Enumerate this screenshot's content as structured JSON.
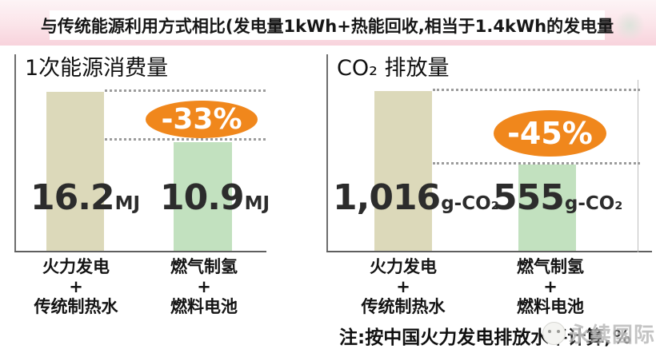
{
  "header": {
    "title": "与传统能源利用方式相比(发电量1kWh+热能回收,相当于1.4kWh的发电量"
  },
  "panels": [
    {
      "title": "1次能源消费量",
      "reduction_badge": "-33%",
      "bars": [
        {
          "value": "16.2",
          "unit": "MJ",
          "lines": [
            "火力发电",
            "+",
            "传统制热水"
          ],
          "color": "#dcd9ba"
        },
        {
          "value": "10.9",
          "unit": "MJ",
          "lines": [
            "燃气制氢",
            "+",
            "燃料电池"
          ],
          "color": "#c2e1bf"
        }
      ]
    },
    {
      "title": "CO₂ 排放量",
      "reduction_badge": "-45%",
      "bars": [
        {
          "value": "1,016",
          "unit": "g-CO₂",
          "lines": [
            "火力发电",
            "+",
            "传统制热水"
          ],
          "color": "#dcd9ba"
        },
        {
          "value": "555",
          "unit": "g-CO₂",
          "lines": [
            "燃气制氢",
            "+",
            "燃料电池"
          ],
          "color": "#c2e1bf"
        }
      ]
    }
  ],
  "note": {
    "text": "注:按中国火力发电排放水平计算,",
    "percent": "%"
  },
  "watermark": {
    "label": "永续国际"
  },
  "colors": {
    "bar_traditional": "#dcd9ba",
    "bar_fuelcell": "#c2e1bf",
    "badge_orange": "#f0871c",
    "header_pink": "#fbe4e9",
    "title_text": "#161616"
  },
  "chart_data": [
    {
      "type": "bar",
      "title": "1次能源消费量",
      "categories": [
        "火力发电+传统制热水",
        "燃气制氢+燃料电池"
      ],
      "values": [
        16.2,
        10.9
      ],
      "unit": "MJ",
      "data_labels": [
        "16.2MJ",
        "10.9MJ"
      ],
      "annotations": [
        "-33%"
      ],
      "bar_colors": [
        "#dcd9ba",
        "#c2e1bf"
      ],
      "xlabel": "",
      "ylabel": "",
      "grid": false,
      "legend": false
    },
    {
      "type": "bar",
      "title": "CO₂ 排放量",
      "categories": [
        "火力发电+传统制热水",
        "燃气制氢+燃料电池"
      ],
      "values": [
        1016,
        555
      ],
      "unit": "g-CO₂",
      "data_labels": [
        "1,016g-CO₂",
        "555g-CO₂"
      ],
      "annotations": [
        "-45%"
      ],
      "bar_colors": [
        "#dcd9ba",
        "#c2e1bf"
      ],
      "xlabel": "",
      "ylabel": "",
      "grid": false,
      "legend": false
    }
  ]
}
